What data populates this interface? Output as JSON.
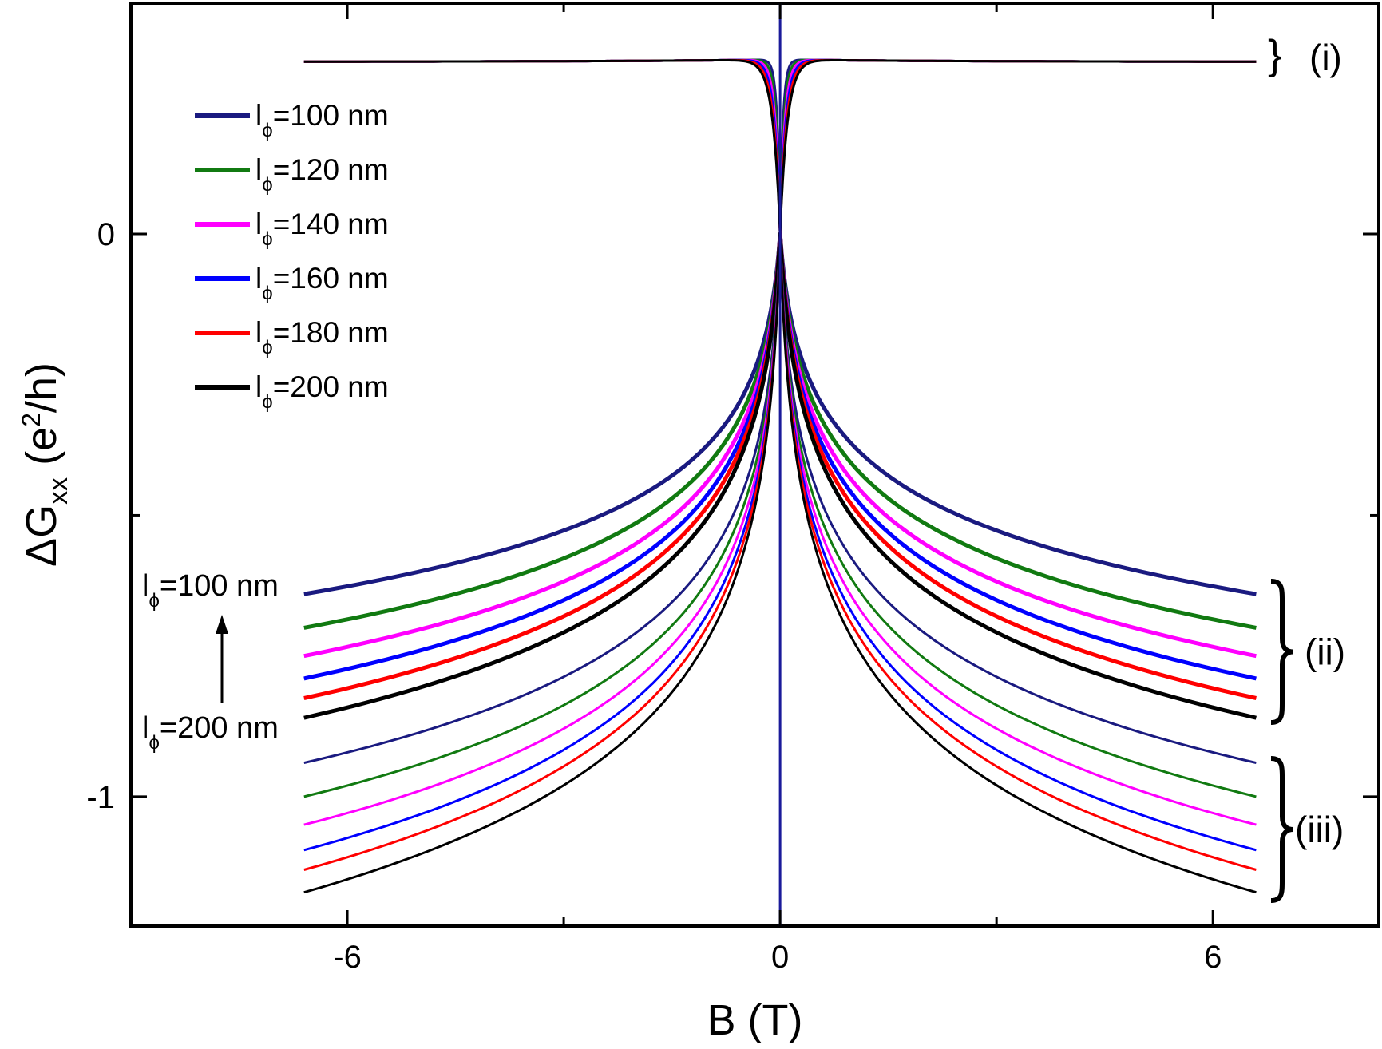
{
  "chart_data": {
    "type": "line",
    "title": "",
    "xlabel": "B (T)",
    "ylabel_main": "ΔG",
    "ylabel_sub": "xx",
    "ylabel_unit_prefix": " (e",
    "ylabel_unit_sup": "2",
    "ylabel_unit_suffix": "/h)",
    "xlim": [
      -9,
      8.3
    ],
    "ylim": [
      -1.23,
      0.41
    ],
    "x_ticks": [
      {
        "value": -6,
        "label": "-6"
      },
      {
        "value": 0,
        "label": "0"
      },
      {
        "value": 6,
        "label": "6"
      }
    ],
    "x_minor_ticks": [
      -3,
      3
    ],
    "y_ticks": [
      {
        "value": 0,
        "label": "0"
      },
      {
        "value": -1,
        "label": "-1"
      }
    ],
    "y_minor_ticks": [
      -0.5
    ],
    "x_range": [
      -6.6,
      6.6
    ],
    "legend": [
      {
        "label_prefix": "l",
        "label_sub": "ϕ",
        "label_suffix": "=100 nm",
        "color": "#1a1a80"
      },
      {
        "label_prefix": "l",
        "label_sub": "ϕ",
        "label_suffix": "=120 nm",
        "color": "#117a11"
      },
      {
        "label_prefix": "l",
        "label_sub": "ϕ",
        "label_suffix": "=140 nm",
        "color": "#ff00ff"
      },
      {
        "label_prefix": "l",
        "label_sub": "ϕ",
        "label_suffix": "=160 nm",
        "color": "#0000ff"
      },
      {
        "label_prefix": "l",
        "label_sub": "ϕ",
        "label_suffix": "=180 nm",
        "color": "#ff0000"
      },
      {
        "label_prefix": "l",
        "label_sub": "ϕ",
        "label_suffix": "=200 nm",
        "color": "#000000"
      }
    ],
    "groups": [
      {
        "label": "(i)",
        "plateau": 0.31,
        "series": [
          {
            "name": "l_phi=100 nm",
            "color": "#1a1a80",
            "width": 3
          },
          {
            "name": "l_phi=120 nm",
            "color": "#117a11",
            "width": 3
          },
          {
            "name": "l_phi=140 nm",
            "color": "#ff00ff",
            "width": 3
          },
          {
            "name": "l_phi=160 nm",
            "color": "#0000ff",
            "width": 3
          },
          {
            "name": "l_phi=180 nm",
            "color": "#ff0000",
            "width": 3
          },
          {
            "name": "l_phi=200 nm",
            "color": "#000000",
            "width": 3
          }
        ]
      },
      {
        "label": "(ii)",
        "series": [
          {
            "name": "l_phi=100 nm",
            "color": "#1a1a80",
            "end_value": -0.64,
            "width": 5
          },
          {
            "name": "l_phi=120 nm",
            "color": "#117a11",
            "end_value": -0.7,
            "width": 5
          },
          {
            "name": "l_phi=140 nm",
            "color": "#ff00ff",
            "end_value": -0.75,
            "width": 5
          },
          {
            "name": "l_phi=160 nm",
            "color": "#0000ff",
            "end_value": -0.79,
            "width": 5
          },
          {
            "name": "l_phi=180 nm",
            "color": "#ff0000",
            "end_value": -0.825,
            "width": 5
          },
          {
            "name": "l_phi=200 nm",
            "color": "#000000",
            "end_value": -0.86,
            "width": 5
          }
        ]
      },
      {
        "label": "(iii)",
        "series": [
          {
            "name": "l_phi=100 nm",
            "color": "#1a1a80",
            "end_value": -0.94,
            "width": 3
          },
          {
            "name": "l_phi=120 nm",
            "color": "#117a11",
            "end_value": -1.0,
            "width": 3
          },
          {
            "name": "l_phi=140 nm",
            "color": "#ff00ff",
            "end_value": -1.05,
            "width": 3
          },
          {
            "name": "l_phi=160 nm",
            "color": "#0000ff",
            "end_value": -1.095,
            "width": 3
          },
          {
            "name": "l_phi=180 nm",
            "color": "#ff0000",
            "end_value": -1.13,
            "width": 3
          },
          {
            "name": "l_phi=200 nm",
            "color": "#000000",
            "end_value": -1.17,
            "width": 3
          }
        ]
      }
    ],
    "vertical_line": {
      "x": 0,
      "color": "#1a1a9a"
    },
    "annotations": {
      "top": {
        "prefix": "l",
        "sub": "ϕ",
        "suffix": "=100 nm"
      },
      "bottom": {
        "prefix": "l",
        "sub": "ϕ",
        "suffix": "=200 nm"
      },
      "brace": "}"
    }
  }
}
